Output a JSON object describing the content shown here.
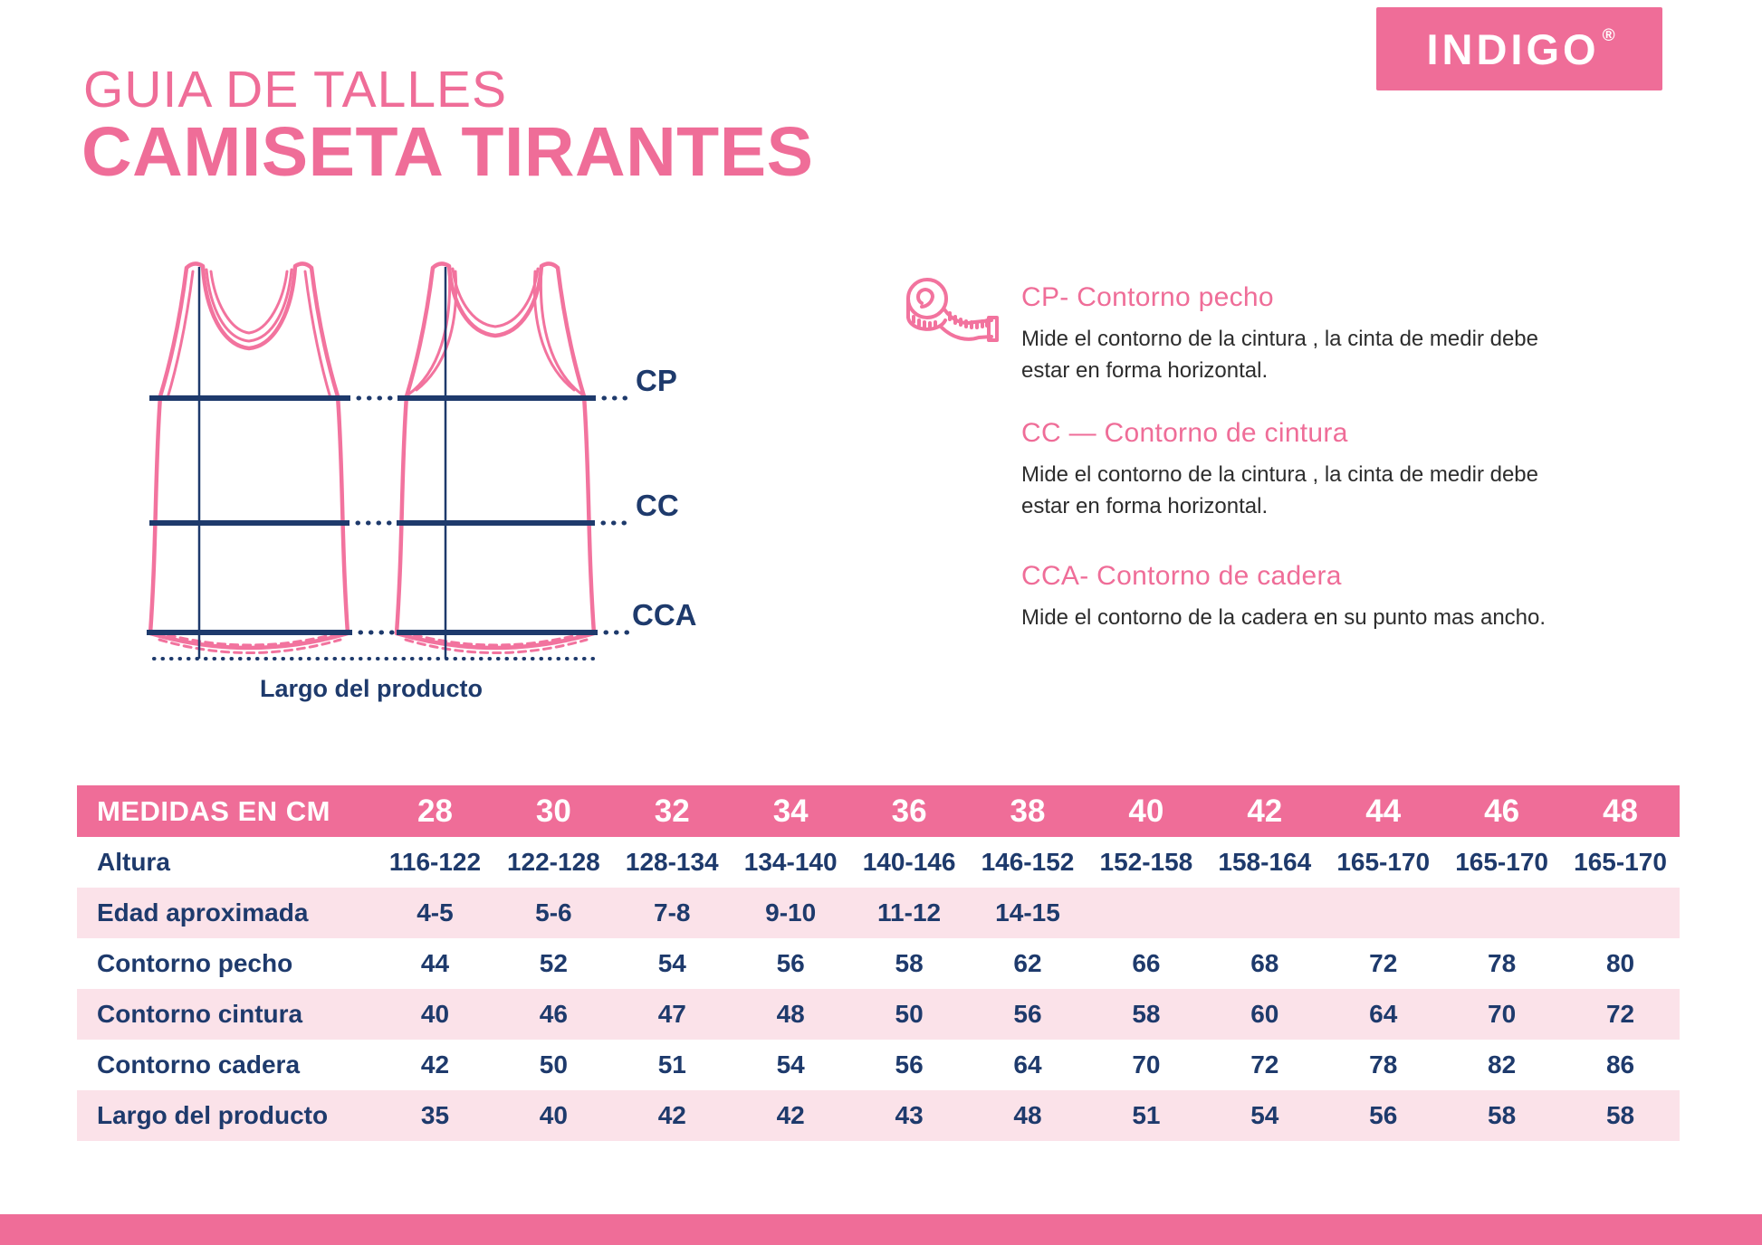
{
  "brand": {
    "logo_text": "INDIGO",
    "registered_mark": "®"
  },
  "header": {
    "title_line1": "GUIA DE TALLES",
    "title_line2": "CAMISETA TIRANTES"
  },
  "diagram": {
    "labels": {
      "cp": "CP",
      "cc": "CC",
      "cca": "CCA"
    },
    "length_label": "Largo del producto"
  },
  "instructions": [
    {
      "heading": "CP- Contorno pecho",
      "body": "Mide el contorno de la cintura , la cinta de medir debe estar en forma horizontal."
    },
    {
      "heading": "CC — Contorno de cintura",
      "body": "Mide el contorno de la cintura , la cinta de medir debe estar en forma horizontal."
    },
    {
      "heading": "CCA- Contorno de cadera",
      "body": "Mide el contorno de la cadera en su punto mas ancho."
    }
  ],
  "table": {
    "header_label": "MEDIDAS EN CM",
    "sizes": [
      "28",
      "30",
      "32",
      "34",
      "36",
      "38",
      "40",
      "42",
      "44",
      "46",
      "48"
    ],
    "rows": [
      {
        "label": "Altura",
        "values": [
          "116-122",
          "122-128",
          "128-134",
          "134-140",
          "140-146",
          "146-152",
          "152-158",
          "158-164",
          "165-170",
          "165-170",
          "165-170"
        ]
      },
      {
        "label": "Edad aproximada",
        "values": [
          "4-5",
          "5-6",
          "7-8",
          "9-10",
          "11-12",
          "14-15",
          "",
          "",
          "",
          "",
          ""
        ]
      },
      {
        "label": "Contorno pecho",
        "values": [
          "44",
          "52",
          "54",
          "56",
          "58",
          "62",
          "66",
          "68",
          "72",
          "78",
          "80"
        ]
      },
      {
        "label": "Contorno cintura",
        "values": [
          "40",
          "46",
          "47",
          "48",
          "50",
          "56",
          "58",
          "60",
          "64",
          "70",
          "72"
        ]
      },
      {
        "label": "Contorno cadera",
        "values": [
          "42",
          "50",
          "51",
          "54",
          "56",
          "64",
          "70",
          "72",
          "78",
          "82",
          "86"
        ]
      },
      {
        "label": "Largo del producto",
        "values": [
          "35",
          "40",
          "42",
          "42",
          "43",
          "48",
          "51",
          "54",
          "56",
          "58",
          "58"
        ]
      }
    ]
  },
  "colors": {
    "brand_pink": "#EF6D98",
    "light_pink": "#FBE2E9",
    "navy": "#1E3A6C",
    "text_dark": "#2D2D2D"
  }
}
